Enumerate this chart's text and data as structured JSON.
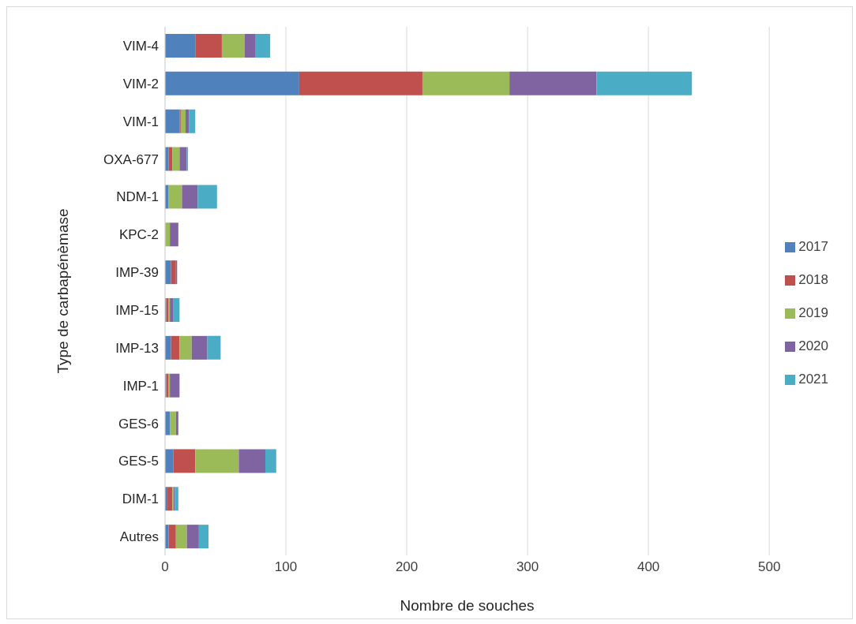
{
  "chart_data": {
    "type": "bar",
    "orientation": "horizontal",
    "stacked": true,
    "xlabel": "Nombre de souches",
    "ylabel": "Type de carbapénèmase",
    "categories": [
      "VIM-4",
      "VIM-2",
      "VIM-1",
      "OXA-677",
      "NDM-1",
      "KPC-2",
      "IMP-39",
      "IMP-15",
      "IMP-13",
      "IMP-1",
      "GES-6",
      "GES-5",
      "DIM-1",
      "Autres"
    ],
    "series": [
      {
        "name": "2017",
        "color": "#4f81bd",
        "values": [
          25,
          111,
          12,
          3,
          3,
          0,
          5,
          1,
          5,
          1,
          4,
          7,
          2,
          3
        ]
      },
      {
        "name": "2018",
        "color": "#c0504d",
        "values": [
          22,
          102,
          1,
          3,
          0,
          0,
          4,
          2,
          7,
          2,
          0,
          18,
          4,
          6
        ]
      },
      {
        "name": "2019",
        "color": "#9bbb59",
        "values": [
          19,
          72,
          4,
          6,
          11,
          4,
          0,
          1,
          10,
          1,
          5,
          36,
          1,
          9
        ]
      },
      {
        "name": "2020",
        "color": "#8064a2",
        "values": [
          9,
          72,
          3,
          6,
          13,
          7,
          1,
          3,
          13,
          8,
          2,
          22,
          1,
          10
        ]
      },
      {
        "name": "2021",
        "color": "#4bacc6",
        "values": [
          12,
          79,
          5,
          1,
          16,
          0,
          0,
          5,
          11,
          0,
          0,
          9,
          3,
          8
        ]
      }
    ],
    "xlim": [
      0,
      500
    ],
    "xticks": [
      0,
      100,
      200,
      300,
      400,
      500
    ],
    "grid": "x",
    "legend": "right"
  }
}
